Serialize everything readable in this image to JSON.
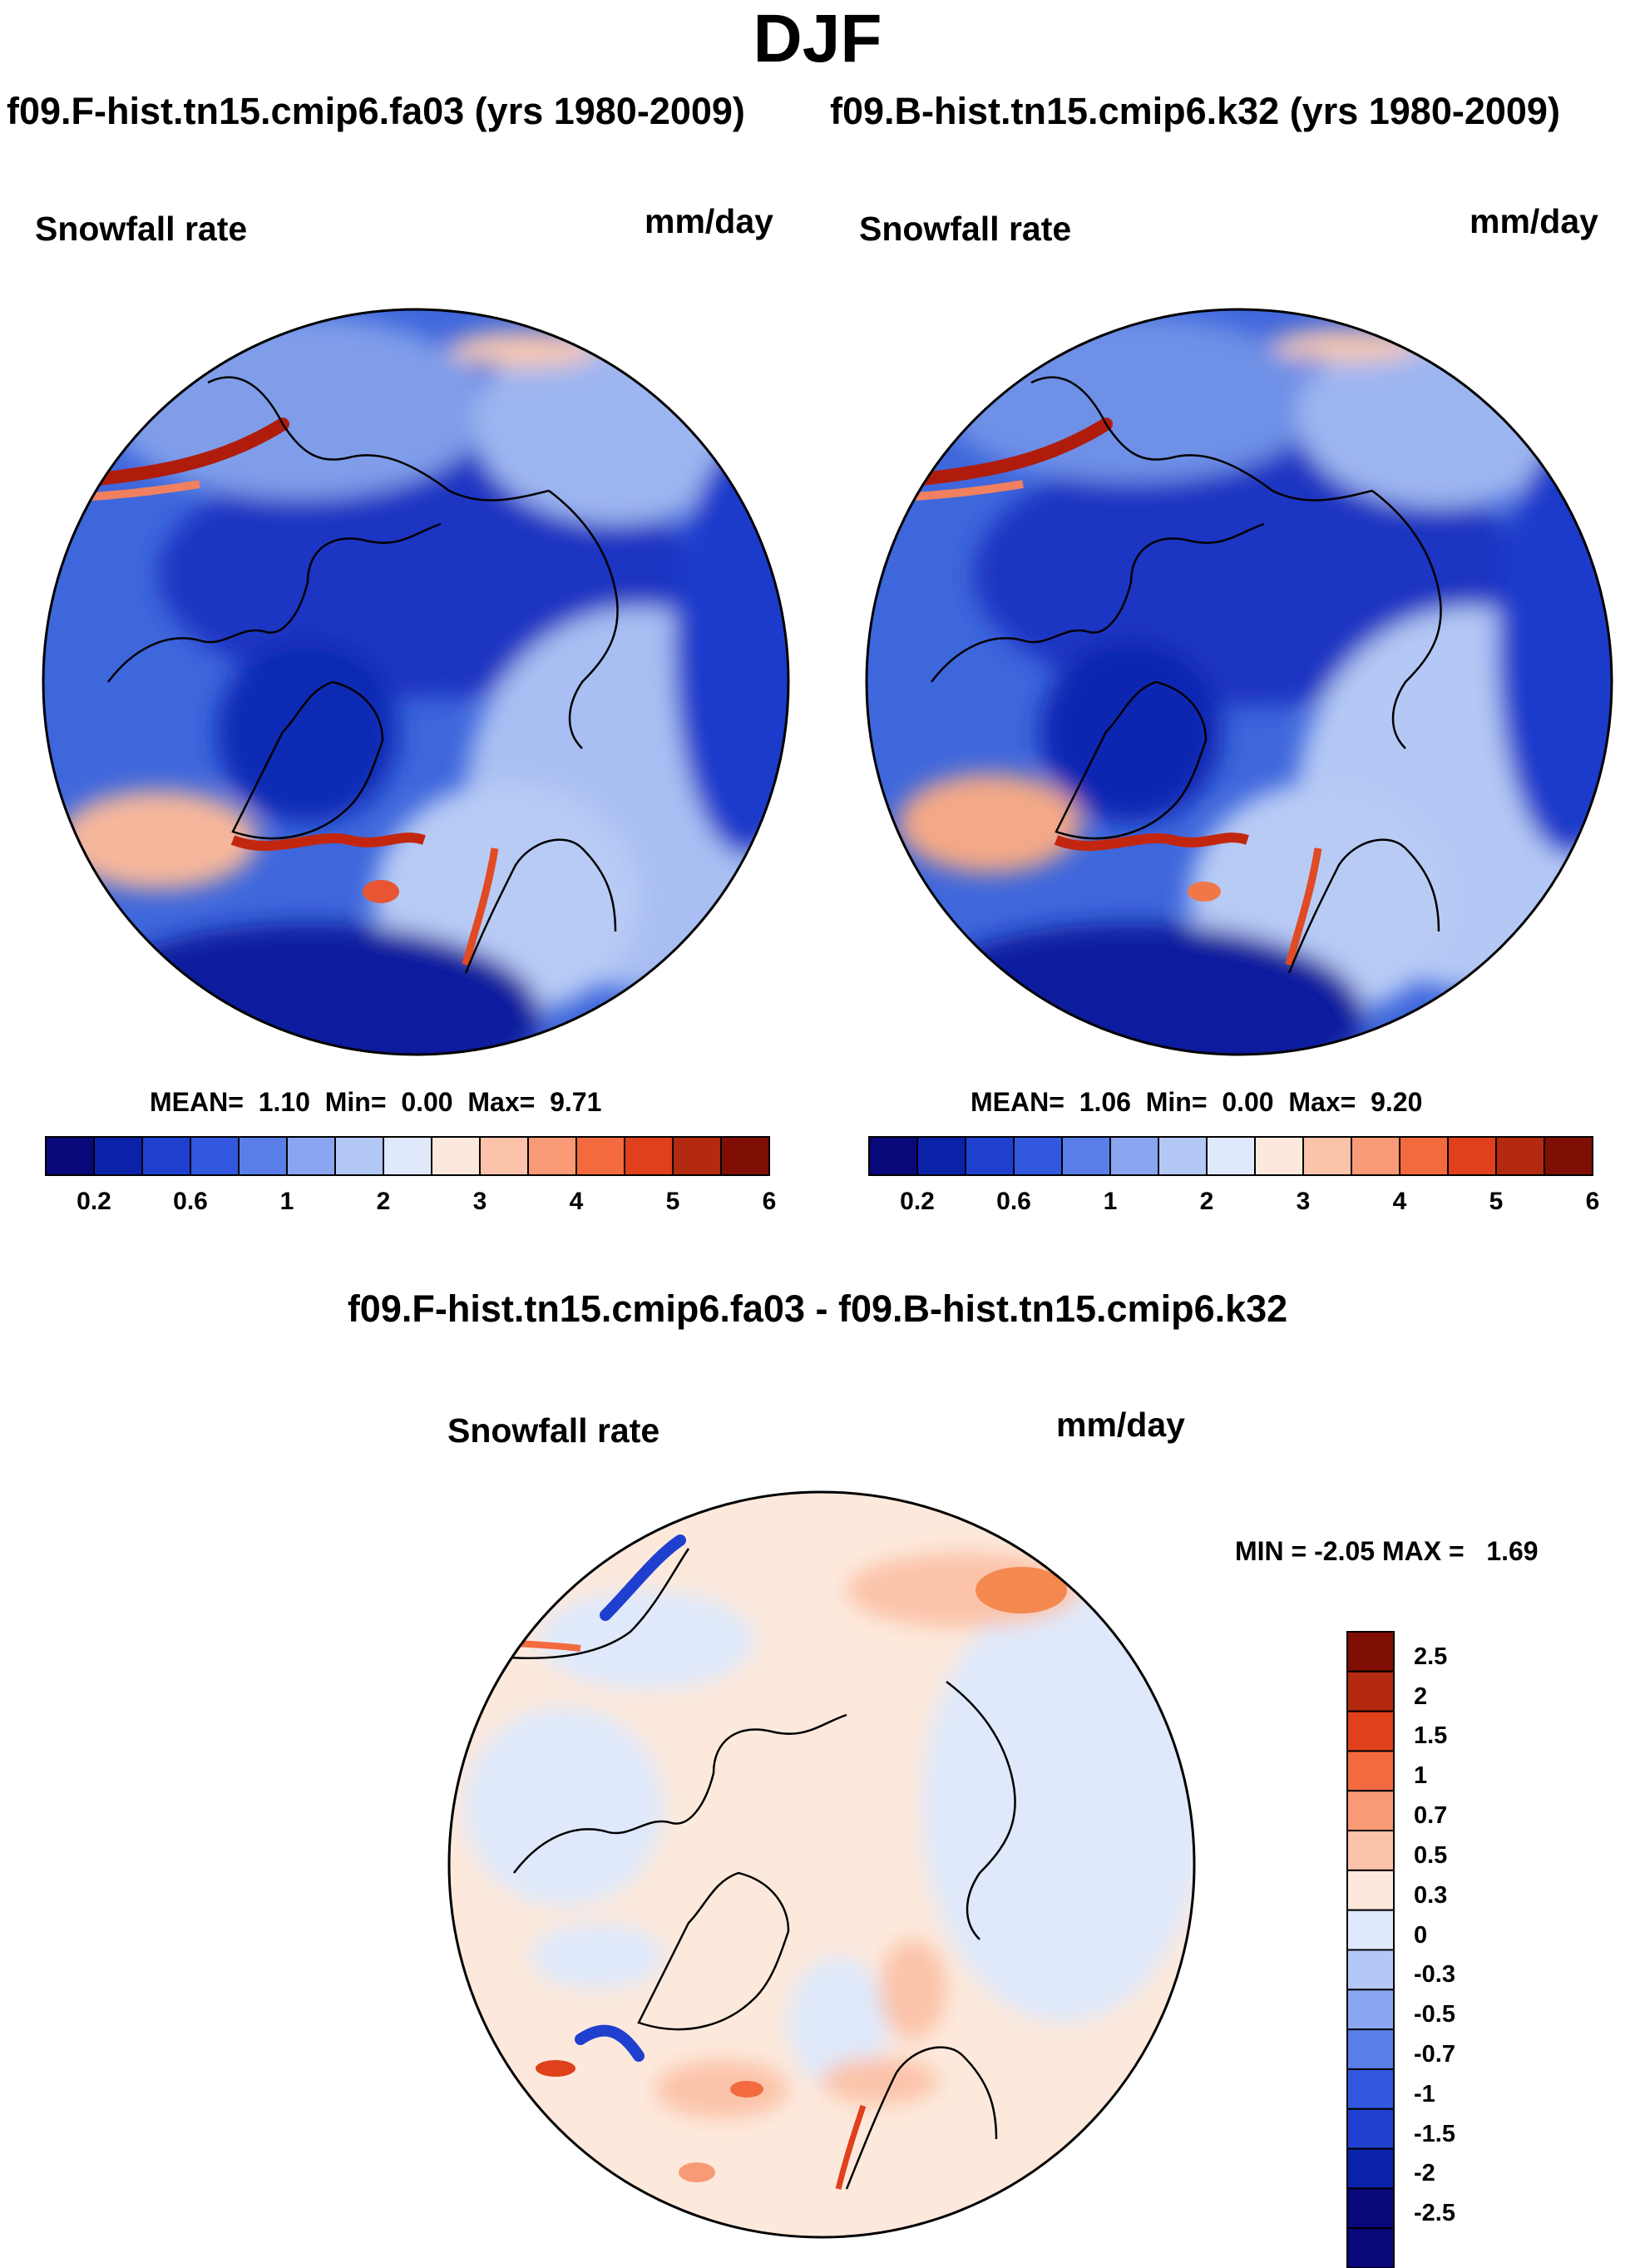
{
  "title": "DJF",
  "panels": [
    {
      "case_title": "f09.F-hist.tn15.cmip6.fa03 (yrs 1980-2009)",
      "variable": "Snowfall rate",
      "units": "mm/day",
      "stats": {
        "mean_label": "MEAN=",
        "mean": "1.10",
        "min_label": "Min=",
        "min": "0.00",
        "max_label": "Max=",
        "max": "9.71"
      }
    },
    {
      "case_title": "f09.B-hist.tn15.cmip6.k32 (yrs 1980-2009)",
      "variable": "Snowfall rate",
      "units": "mm/day",
      "stats": {
        "mean_label": "MEAN=",
        "mean": "1.06",
        "min_label": "Min=",
        "min": "0.00",
        "max_label": "Max=",
        "max": "9.20"
      }
    }
  ],
  "colorbar": {
    "colors": [
      "#08087a",
      "#0a22a8",
      "#1f3fcf",
      "#3358e0",
      "#5a7ee8",
      "#8aa6f0",
      "#b3c8f5",
      "#dfe9fb",
      "#fde9dc",
      "#fbc3a9",
      "#f89a75",
      "#f36a3f",
      "#e0401b",
      "#b42a10",
      "#7f0e05"
    ],
    "ticks": [
      "0.2",
      "0.6",
      "1",
      "2",
      "3",
      "4",
      "5",
      "6"
    ]
  },
  "diff": {
    "title": "f09.F-hist.tn15.cmip6.fa03 - f09.B-hist.tn15.cmip6.k32",
    "variable": "Snowfall rate",
    "units": "mm/day",
    "stats": {
      "min_label": "MIN =",
      "min": "-2.05",
      "max_label": "MAX =",
      "max": "1.69"
    },
    "colorbar": {
      "colors": [
        "#7f0e05",
        "#b42a10",
        "#e0401b",
        "#f36a3f",
        "#f89a75",
        "#fbc3a9",
        "#fde9dc",
        "#dfe9fb",
        "#b3c8f5",
        "#8aa6f0",
        "#5a7ee8",
        "#3358e0",
        "#1f3fcf",
        "#0a22a8",
        "#08087a"
      ],
      "ticks": [
        "2.5",
        "2",
        "1.5",
        "1",
        "0.7",
        "0.5",
        "0.3",
        "0",
        "-0.3",
        "-0.5",
        "-0.7",
        "-1",
        "-1.5",
        "-2",
        "-2.5"
      ]
    }
  }
}
